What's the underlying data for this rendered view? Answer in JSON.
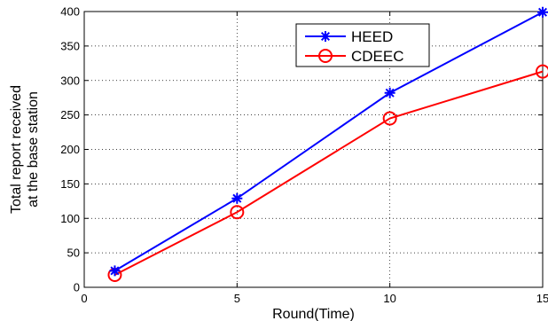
{
  "chart_data": {
    "type": "line",
    "x": [
      1,
      5,
      10,
      15
    ],
    "series": [
      {
        "name": "HEED",
        "values": [
          24,
          129,
          282,
          399
        ],
        "color": "#0000ff",
        "marker": "asterisk"
      },
      {
        "name": "CDEEC",
        "values": [
          18,
          109,
          245,
          313
        ],
        "color": "#ff0000",
        "marker": "circle"
      }
    ],
    "xlabel": "Round(Time)",
    "ylabel_lines": [
      "Total report received",
      "at the base station"
    ],
    "xlim": [
      0,
      15
    ],
    "ylim": [
      0,
      400
    ],
    "xticks": [
      0,
      5,
      10,
      15
    ],
    "yticks": [
      0,
      50,
      100,
      150,
      200,
      250,
      300,
      350,
      400
    ],
    "grid": true,
    "legend_position": "top-center"
  }
}
